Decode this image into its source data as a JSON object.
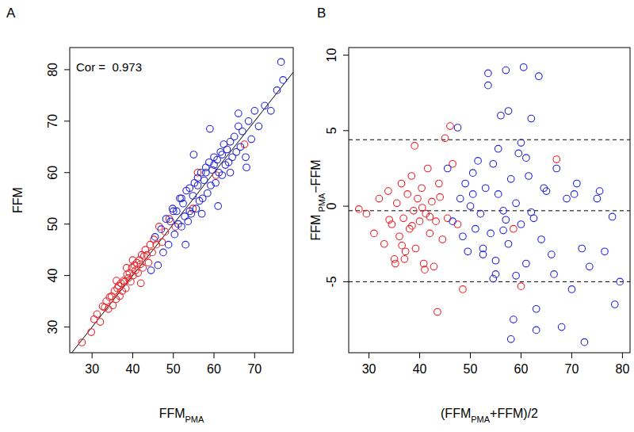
{
  "chart_data": [
    {
      "type": "scatter",
      "title": "A",
      "x_label": [
        {
          "text": "FFM"
        },
        {
          "text": "PMA",
          "sub": true
        }
      ],
      "y_label": [
        {
          "text": "FFM"
        }
      ],
      "annotation": "Cor =  0.973",
      "xlim": [
        24.5,
        79.5
      ],
      "ylim": [
        25,
        84.3
      ],
      "xticks": [
        30,
        40,
        50,
        60,
        70
      ],
      "yticks": [
        30,
        40,
        50,
        60,
        70,
        80
      ],
      "reference_lines": [
        {
          "slope": 1,
          "intercept": 0
        }
      ],
      "series": [
        {
          "color": "#e8242a",
          "marker": "circle-open",
          "x": [
            27.5,
            29.8,
            30.5,
            31.2,
            32.0,
            32.6,
            33.1,
            33.5,
            34.0,
            34.3,
            34.8,
            35.1,
            35.5,
            35.9,
            36.2,
            36.5,
            36.8,
            37.1,
            37.4,
            37.7,
            38.0,
            38.3,
            38.6,
            38.9,
            39.2,
            39.5,
            39.8,
            40.1,
            40.4,
            40.7,
            41.0,
            41.3,
            41.6,
            41.9,
            42.2,
            42.5,
            42.8,
            43.1,
            43.5,
            43.9,
            44.3,
            44.8,
            45.2,
            45.8,
            46.5,
            47.2,
            48.0,
            49.0,
            50.5,
            54.8,
            56.0,
            60.5,
            67.5,
            36.0,
            38.5,
            40.0,
            42.0
          ],
          "values": [
            27.0,
            29.0,
            31.5,
            32.5,
            31.0,
            34.0,
            33.8,
            35.0,
            33.5,
            35.8,
            36.0,
            34.2,
            37.0,
            35.4,
            37.5,
            38.0,
            36.0,
            38.5,
            37.0,
            39.0,
            38.8,
            37.5,
            40.2,
            39.5,
            40.5,
            38.8,
            41.5,
            40.0,
            42.0,
            41.0,
            42.5,
            40.5,
            43.0,
            42.2,
            44.0,
            41.5,
            43.8,
            45.0,
            44.0,
            42.5,
            46.0,
            44.5,
            47.0,
            46.0,
            49.5,
            46.5,
            48.5,
            51.0,
            49.5,
            53.0,
            60.0,
            59.5,
            65.5,
            39.0,
            41.5,
            43.0,
            38.5
          ]
        },
        {
          "color": "#2424d8",
          "marker": "circle-open",
          "x": [
            44.5,
            45.5,
            46.2,
            47.0,
            47.5,
            48.2,
            48.8,
            49.3,
            49.8,
            50.3,
            50.8,
            51.2,
            51.6,
            52.0,
            52.4,
            52.8,
            53.2,
            53.6,
            54.0,
            54.4,
            54.8,
            55.2,
            55.6,
            56.0,
            56.4,
            56.8,
            57.2,
            57.6,
            58.0,
            58.4,
            58.8,
            59.2,
            59.6,
            60.0,
            60.4,
            60.8,
            61.2,
            61.6,
            62.0,
            62.4,
            62.8,
            63.2,
            63.6,
            64.0,
            64.5,
            65.0,
            65.5,
            66.0,
            66.5,
            67.0,
            67.8,
            68.5,
            69.2,
            70.0,
            71.0,
            72.5,
            74.0,
            75.5,
            76.5,
            77.0,
            53.0,
            55.0,
            57.0,
            59.0,
            61.0,
            58.0,
            56.0,
            54.0,
            60.0,
            62.0,
            50.0,
            52.0,
            64.0,
            66.0,
            68.0
          ],
          "values": [
            41.0,
            47.5,
            42.0,
            49.0,
            44.5,
            51.0,
            46.0,
            50.5,
            53.0,
            48.0,
            52.5,
            50.0,
            55.0,
            49.5,
            54.0,
            51.5,
            56.5,
            50.5,
            57.0,
            52.0,
            55.5,
            58.0,
            53.0,
            59.0,
            54.5,
            60.0,
            55.0,
            58.5,
            61.0,
            56.0,
            62.0,
            57.5,
            60.5,
            63.0,
            58.0,
            62.5,
            60.0,
            64.0,
            59.5,
            65.5,
            61.5,
            64.5,
            62.0,
            66.0,
            63.0,
            67.0,
            64.0,
            69.0,
            65.0,
            68.0,
            63.0,
            70.0,
            66.5,
            72.0,
            69.0,
            73.0,
            72.0,
            76.0,
            81.5,
            78.0,
            46.0,
            63.5,
            52.0,
            68.5,
            53.5,
            60.0,
            57.5,
            52.5,
            61.5,
            63.5,
            52.5,
            55.0,
            60.0,
            71.5,
            61.0
          ]
        }
      ]
    },
    {
      "type": "scatter",
      "title": "B",
      "x_label": [
        {
          "text": "(FFM"
        },
        {
          "text": "PMA",
          "sub": true
        },
        {
          "text": "+FFM)/2"
        }
      ],
      "y_label": [
        {
          "text": "FFM"
        },
        {
          "text": " PMA",
          "sub": true
        },
        {
          "text": "−FFM"
        }
      ],
      "xlim": [
        26,
        81.5
      ],
      "ylim": [
        -9.7,
        10.5
      ],
      "xticks": [
        30,
        40,
        50,
        60,
        70,
        80
      ],
      "yticks": [
        -5,
        0,
        5,
        10
      ],
      "reference_lines": [
        {
          "y": 4.4
        },
        {
          "y": -0.3
        },
        {
          "y": -5.0
        }
      ],
      "line_style": "dashed",
      "series": [
        {
          "color": "#e8242a",
          "marker": "circle-open",
          "x": [
            28.0,
            29.5,
            31.0,
            32.0,
            33.0,
            33.8,
            34.5,
            35.0,
            35.5,
            36.0,
            36.4,
            36.8,
            37.2,
            37.6,
            38.0,
            38.4,
            38.8,
            39.2,
            39.6,
            40.0,
            40.4,
            40.8,
            41.2,
            41.6,
            42.0,
            42.4,
            42.8,
            43.2,
            43.8,
            44.5,
            45.0,
            45.5,
            46.5,
            47.5,
            43.5,
            41.0,
            39.0,
            37.0,
            35.2,
            34.0,
            42.0,
            44.0,
            46.0,
            48.5,
            58.5,
            60.0,
            67.0,
            38.5,
            40.5,
            36.5
          ],
          "values": [
            -0.2,
            -0.5,
            -1.8,
            0.5,
            -2.5,
            1.0,
            -1.2,
            -3.5,
            0.2,
            -2.0,
            1.5,
            -0.8,
            -3.0,
            0.8,
            -1.5,
            2.0,
            -0.3,
            -2.8,
            0.5,
            -1.0,
            1.2,
            -3.8,
            -0.5,
            2.5,
            -1.8,
            0.3,
            -4.0,
            -1.0,
            1.5,
            -2.2,
            4.5,
            -0.8,
            2.8,
            -1.2,
            -7.0,
            -4.2,
            4.0,
            -3.5,
            -3.8,
            -0.9,
            -0.7,
            0.6,
            5.3,
            -5.5,
            -1.5,
            -5.3,
            3.1,
            -1.3,
            -0.1,
            -2.6
          ]
        },
        {
          "color": "#2424d8",
          "marker": "circle-open",
          "x": [
            45.5,
            46.5,
            47.5,
            48.0,
            48.5,
            49.0,
            49.5,
            50.0,
            50.5,
            51.0,
            51.5,
            52.0,
            52.5,
            53.0,
            53.5,
            54.0,
            54.5,
            55.0,
            55.5,
            56.0,
            56.5,
            57.0,
            57.5,
            58.0,
            58.5,
            59.0,
            59.5,
            60.0,
            60.5,
            61.0,
            61.5,
            62.0,
            62.5,
            63.0,
            63.5,
            64.0,
            65.0,
            66.0,
            67.0,
            68.0,
            69.0,
            70.0,
            71.0,
            72.0,
            73.5,
            75.0,
            76.5,
            78.0,
            79.5,
            54.5,
            55.5,
            56.5,
            57.5,
            58.0,
            60.0,
            62.0,
            64.5,
            53.5,
            55.0,
            57.0,
            59.0,
            61.0,
            63.0,
            66.5,
            70.5,
            72.5,
            75.5,
            78.5,
            50.5,
            52.5
          ],
          "values": [
            2.5,
            -1.0,
            5.2,
            0.5,
            -2.0,
            1.5,
            -3.0,
            0.0,
            2.2,
            -1.5,
            3.0,
            -0.5,
            -2.8,
            1.2,
            8.0,
            -1.8,
            2.8,
            -4.5,
            0.8,
            6.0,
            -0.3,
            9.0,
            -2.5,
            1.8,
            -7.5,
            0.2,
            3.5,
            -1.2,
            9.2,
            -3.8,
            2.0,
            5.8,
            -0.8,
            -6.8,
            8.6,
            -2.2,
            1.0,
            -3.2,
            2.5,
            -8.0,
            0.5,
            -5.5,
            1.5,
            -2.8,
            -4.0,
            0.5,
            -3.0,
            -0.7,
            -5.0,
            -4.8,
            3.8,
            -1.6,
            6.3,
            -8.8,
            4.2,
            -0.4,
            1.2,
            8.8,
            -3.6,
            -0.9,
            -4.6,
            3.2,
            -8.2,
            -4.5,
            0.8,
            -9.0,
            1.0,
            -6.5,
            0.8,
            -3.2
          ]
        }
      ]
    }
  ]
}
